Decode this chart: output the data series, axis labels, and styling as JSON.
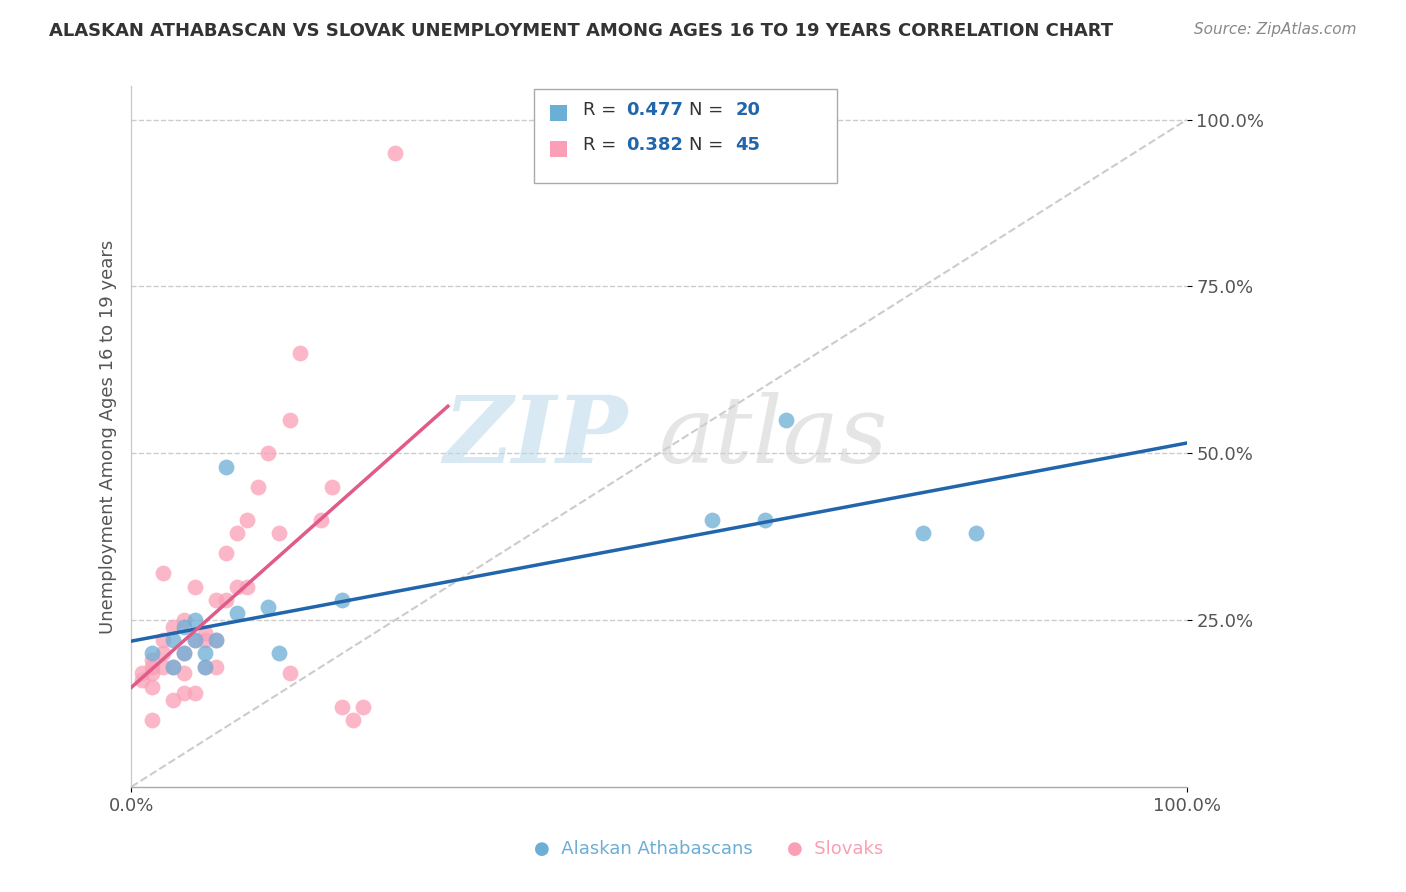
{
  "title": "ALASKAN ATHABASCAN VS SLOVAK UNEMPLOYMENT AMONG AGES 16 TO 19 YEARS CORRELATION CHART",
  "source": "Source: ZipAtlas.com",
  "ylabel": "Unemployment Among Ages 16 to 19 years",
  "watermark_zip": "ZIP",
  "watermark_atlas": "atlas",
  "legend_blue_R": "0.477",
  "legend_blue_N": "20",
  "legend_pink_R": "0.382",
  "legend_pink_N": "45",
  "blue_color": "#6baed6",
  "pink_color": "#fa9fb5",
  "blue_line_color": "#2166ac",
  "pink_line_color": "#e05a8a",
  "diagonal_color": "#cccccc",
  "background": "#ffffff",
  "grid_color": "#cccccc",
  "blue_scatter_x": [
    0.02,
    0.04,
    0.04,
    0.05,
    0.05,
    0.06,
    0.06,
    0.07,
    0.07,
    0.08,
    0.09,
    0.1,
    0.13,
    0.14,
    0.2,
    0.55,
    0.6,
    0.62,
    0.75,
    0.8
  ],
  "blue_scatter_y": [
    0.2,
    0.22,
    0.18,
    0.24,
    0.2,
    0.22,
    0.25,
    0.2,
    0.18,
    0.22,
    0.48,
    0.26,
    0.27,
    0.2,
    0.28,
    0.4,
    0.4,
    0.55,
    0.38,
    0.38
  ],
  "pink_scatter_x": [
    0.01,
    0.01,
    0.02,
    0.02,
    0.02,
    0.02,
    0.03,
    0.03,
    0.03,
    0.04,
    0.04,
    0.05,
    0.05,
    0.05,
    0.06,
    0.06,
    0.07,
    0.07,
    0.08,
    0.08,
    0.09,
    0.1,
    0.1,
    0.11,
    0.12,
    0.13,
    0.14,
    0.15,
    0.16,
    0.18,
    0.19,
    0.2,
    0.21,
    0.22,
    0.25,
    0.08,
    0.06,
    0.05,
    0.04,
    0.07,
    0.09,
    0.11,
    0.03,
    0.02,
    0.15
  ],
  "pink_scatter_y": [
    0.17,
    0.16,
    0.17,
    0.18,
    0.15,
    0.19,
    0.18,
    0.2,
    0.22,
    0.18,
    0.24,
    0.17,
    0.2,
    0.25,
    0.22,
    0.3,
    0.22,
    0.18,
    0.28,
    0.22,
    0.35,
    0.38,
    0.3,
    0.4,
    0.45,
    0.5,
    0.38,
    0.55,
    0.65,
    0.4,
    0.45,
    0.12,
    0.1,
    0.12,
    0.95,
    0.18,
    0.14,
    0.14,
    0.13,
    0.23,
    0.28,
    0.3,
    0.32,
    0.1,
    0.17
  ]
}
